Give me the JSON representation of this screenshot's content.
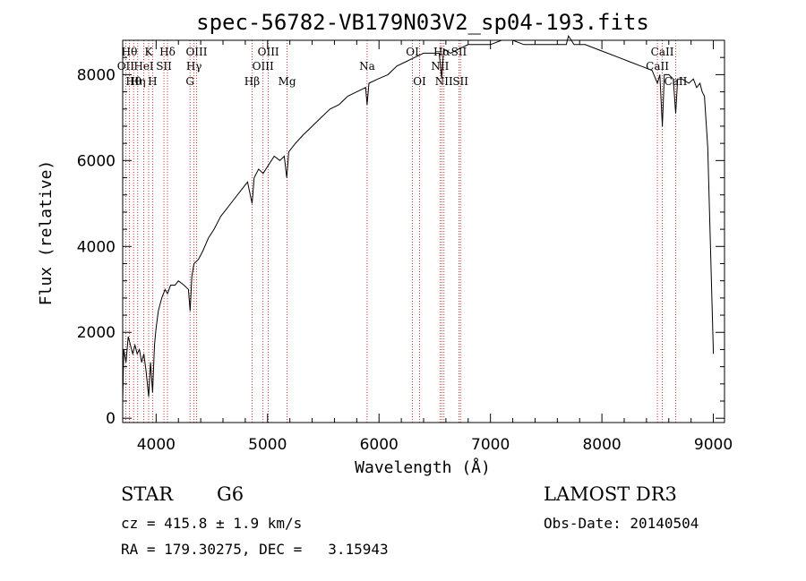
{
  "chart_data": {
    "type": "line",
    "title": "spec-56782-VB179N03V2_sp04-193.fits",
    "xlabel": "Wavelength (Å)",
    "ylabel": "Flux (relative)",
    "xlim": [
      3700,
      9100
    ],
    "ylim": [
      -100,
      8800
    ],
    "x_ticks": [
      4000,
      5000,
      6000,
      7000,
      8000,
      9000
    ],
    "y_ticks": [
      0,
      2000,
      4000,
      6000,
      8000
    ],
    "x_tick_labels": [
      "4000",
      "5000",
      "6000",
      "7000",
      "8000",
      "9000"
    ],
    "y_tick_labels": [
      "0",
      "2000",
      "4000",
      "6000",
      "8000"
    ],
    "series": [
      {
        "name": "flux",
        "x": [
          3700,
          3710,
          3730,
          3750,
          3770,
          3790,
          3810,
          3830,
          3850,
          3870,
          3890,
          3910,
          3933,
          3950,
          3968,
          3985,
          4000,
          4020,
          4050,
          4080,
          4102,
          4130,
          4170,
          4200,
          4250,
          4290,
          4305,
          4320,
          4340,
          4380,
          4420,
          4470,
          4520,
          4580,
          4640,
          4700,
          4760,
          4820,
          4861,
          4880,
          4920,
          4960,
          5010,
          5060,
          5110,
          5150,
          5172,
          5190,
          5250,
          5320,
          5400,
          5480,
          5560,
          5640,
          5720,
          5800,
          5880,
          5893,
          5910,
          5990,
          6080,
          6160,
          6240,
          6320,
          6400,
          6480,
          6540,
          6563,
          6580,
          6640,
          6720,
          6800,
          6900,
          7000,
          7100,
          7200,
          7300,
          7400,
          7500,
          7600,
          7680,
          7700,
          7750,
          7850,
          7950,
          8050,
          8150,
          8250,
          8350,
          8450,
          8498,
          8520,
          8542,
          8560,
          8600,
          8640,
          8662,
          8680,
          8720,
          8780,
          8820,
          8850,
          8880,
          8900,
          8920,
          8950,
          9000
        ],
        "y": [
          400,
          1600,
          1300,
          1900,
          1700,
          1500,
          1700,
          1500,
          1600,
          1300,
          1500,
          1100,
          500,
          1300,
          600,
          1700,
          2100,
          2500,
          2800,
          3000,
          2900,
          3100,
          3100,
          3200,
          3100,
          3000,
          2500,
          3300,
          3600,
          3700,
          3900,
          4200,
          4400,
          4700,
          4900,
          5100,
          5300,
          5500,
          5000,
          5600,
          5800,
          5700,
          5900,
          6100,
          6000,
          6100,
          5600,
          6200,
          6400,
          6600,
          6800,
          7000,
          7200,
          7300,
          7500,
          7600,
          7700,
          7300,
          7800,
          7900,
          8000,
          8200,
          8300,
          8400,
          8500,
          8500,
          8500,
          7900,
          8600,
          8500,
          8600,
          8700,
          8700,
          8700,
          8800,
          8800,
          8700,
          8700,
          8700,
          8700,
          8700,
          8900,
          8700,
          8700,
          8600,
          8500,
          8400,
          8300,
          8200,
          8100,
          7800,
          8000,
          6800,
          8000,
          8000,
          7900,
          7100,
          7900,
          7900,
          7800,
          7900,
          7700,
          7800,
          7600,
          7500,
          6300,
          1500
        ]
      }
    ],
    "lines": [
      {
        "x": 3727,
        "label": "OII",
        "row": 2
      },
      {
        "x": 3760,
        "label": "Hθ",
        "row": 1
      },
      {
        "x": 3798,
        "label": "Hθ",
        "row": 3
      },
      {
        "x": 3835,
        "label": "Hη",
        "row": 3
      },
      {
        "x": 3889,
        "label": "HeI",
        "row": 2
      },
      {
        "x": 3933,
        "label": "K",
        "row": 1
      },
      {
        "x": 3968,
        "label": "H",
        "row": 3
      },
      {
        "x": 4070,
        "label": "SII",
        "row": 2
      },
      {
        "x": 4102,
        "label": "Hδ",
        "row": 1
      },
      {
        "x": 4304,
        "label": "G",
        "row": 3
      },
      {
        "x": 4340,
        "label": "Hγ",
        "row": 2
      },
      {
        "x": 4363,
        "label": "OIII",
        "row": 1
      },
      {
        "x": 4861,
        "label": "Hβ",
        "row": 3
      },
      {
        "x": 4959,
        "label": "OIII",
        "row": 2
      },
      {
        "x": 5007,
        "label": "OIII",
        "row": 1
      },
      {
        "x": 5175,
        "label": "Mg",
        "row": 3
      },
      {
        "x": 5893,
        "label": "Na",
        "row": 2
      },
      {
        "x": 6300,
        "label": "OI",
        "row": 1
      },
      {
        "x": 6364,
        "label": "OI",
        "row": 3
      },
      {
        "x": 6548,
        "label": "NII",
        "row": 2
      },
      {
        "x": 6563,
        "label": "Hα",
        "row": 1
      },
      {
        "x": 6583,
        "label": "NII",
        "row": 3
      },
      {
        "x": 6717,
        "label": "SII",
        "row": 1
      },
      {
        "x": 6731,
        "label": "SII",
        "row": 3
      },
      {
        "x": 8498,
        "label": "CaII",
        "row": 2
      },
      {
        "x": 8542,
        "label": "CaII",
        "row": 1
      },
      {
        "x": 8662,
        "label": "CaII",
        "row": 3
      }
    ],
    "line_color": "#cc0000",
    "spectrum_color": "#000000"
  },
  "info": {
    "class_label": "STAR",
    "subclass": "G6",
    "survey": "LAMOST DR3",
    "cz": "cz = 415.8 ± 1.9 km/s",
    "obs_date": "Obs-Date: 20140504",
    "coords": "RA = 179.30275, DEC =   3.15943"
  }
}
